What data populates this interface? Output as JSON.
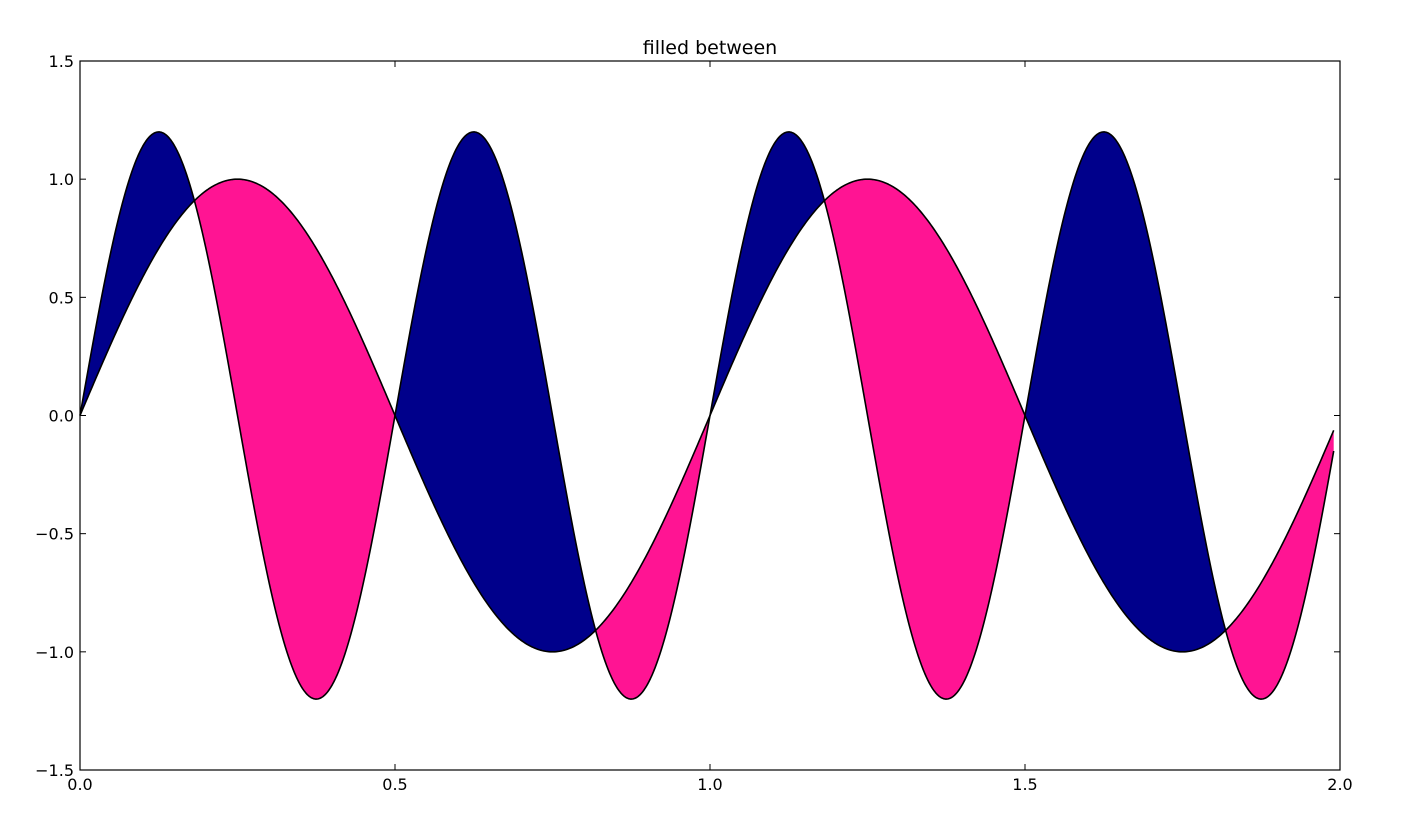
{
  "chart_data": {
    "type": "area",
    "title": "filled between",
    "xlabel": "",
    "ylabel": "",
    "xlim": [
      0.0,
      2.0
    ],
    "ylim": [
      -1.5,
      1.5
    ],
    "grid": false,
    "x_ticks": [
      {
        "value": 0.0,
        "label": "0.0"
      },
      {
        "value": 0.5,
        "label": "0.5"
      },
      {
        "value": 1.0,
        "label": "1.0"
      },
      {
        "value": 1.5,
        "label": "1.5"
      },
      {
        "value": 2.0,
        "label": "2.0"
      }
    ],
    "y_ticks": [
      {
        "value": 1.5,
        "label": "1.5"
      },
      {
        "value": 1.0,
        "label": "1.0"
      },
      {
        "value": 0.5,
        "label": "0.5"
      },
      {
        "value": 0.0,
        "label": "0.0"
      },
      {
        "value": -0.5,
        "label": "−0.5"
      },
      {
        "value": -1.0,
        "label": "−1.0"
      },
      {
        "value": -1.5,
        "label": "−1.5"
      }
    ],
    "series": [
      {
        "formula": "y = sin(2*pi*x)",
        "x": [
          0.0,
          0.125,
          0.25,
          0.375,
          0.5,
          0.625,
          0.75,
          0.875,
          1.0,
          1.125,
          1.25,
          1.375,
          1.5,
          1.625,
          1.75,
          1.875,
          1.99
        ],
        "values": [
          0.0,
          0.707,
          1.0,
          0.707,
          0.0,
          -0.707,
          -1.0,
          -0.707,
          0.0,
          0.707,
          1.0,
          0.707,
          0.0,
          -0.707,
          -1.0,
          -0.707,
          -0.063
        ]
      },
      {
        "formula": "y = 1.2*sin(4*pi*x)",
        "x": [
          0.0,
          0.125,
          0.25,
          0.375,
          0.5,
          0.625,
          0.75,
          0.875,
          1.0,
          1.125,
          1.25,
          1.375,
          1.5,
          1.625,
          1.75,
          1.875,
          1.99
        ],
        "values": [
          0.0,
          1.2,
          0.0,
          -1.2,
          0.0,
          1.2,
          0.0,
          -1.2,
          0.0,
          1.2,
          0.0,
          -1.2,
          0.0,
          1.2,
          0.0,
          -1.2,
          -0.151
        ]
      }
    ],
    "x_end": 1.99,
    "fill_where_y2_above_y1_color": "#00008b",
    "fill_where_y2_below_y1_color": "#ff1493",
    "line_color": "#000000"
  }
}
